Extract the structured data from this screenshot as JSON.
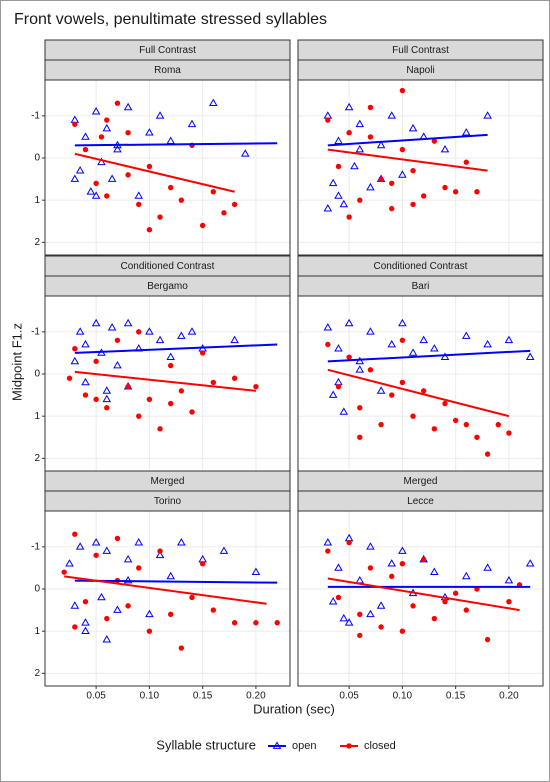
{
  "title": "Front vowels, penultimate stressed syllables",
  "x_label": "Duration (sec)",
  "y_label": "Midpoint F1.z",
  "legend": {
    "title": "Syllable structure",
    "items": [
      {
        "name": "open",
        "color": "#0000ff",
        "marker": "triangle"
      },
      {
        "name": "closed",
        "color": "#ff0000",
        "marker": "circle"
      }
    ]
  },
  "chart_data": [
    {
      "type": "scatter",
      "facet": "Full Contrast",
      "panel": "Roma",
      "grid": true,
      "y_reversed": true,
      "xlim": [
        0.002,
        0.232
      ],
      "xticks": [
        0.05,
        {
          "value": 0.1,
          "label": "0.10"
        },
        0.15,
        {
          "value": 0.2,
          "label": "0.20"
        }
      ],
      "ylim": [
        -1.85,
        2.3
      ],
      "yticks": [
        -1,
        0,
        1,
        2
      ],
      "series": [
        {
          "x": [
            0.03,
            0.035,
            0.04,
            0.045,
            0.05,
            0.055,
            0.06,
            0.065,
            0.07,
            0.08,
            0.09,
            0.1,
            0.11,
            0.12,
            0.14,
            0.16,
            0.19,
            0.03,
            0.05,
            0.07
          ],
          "values": [
            -0.9,
            0.3,
            -0.5,
            0.8,
            -1.1,
            0.1,
            -0.7,
            0.5,
            -0.2,
            -1.2,
            0.9,
            -0.6,
            -1.0,
            -0.4,
            -0.8,
            -1.3,
            -0.1,
            0.5,
            0.9,
            -0.3
          ],
          "fit": {
            "x": [
              0.03,
              0.22
            ],
            "values": [
              -0.3,
              -0.35
            ]
          }
        },
        {
          "x": [
            0.03,
            0.04,
            0.05,
            0.055,
            0.06,
            0.07,
            0.08,
            0.09,
            0.1,
            0.11,
            0.12,
            0.13,
            0.14,
            0.15,
            0.16,
            0.17,
            0.18,
            0.06,
            0.08,
            0.1
          ],
          "values": [
            -0.8,
            -0.2,
            0.6,
            -0.5,
            0.9,
            -1.3,
            0.4,
            1.1,
            0.2,
            1.4,
            0.7,
            1.0,
            -0.3,
            1.6,
            0.8,
            1.3,
            1.1,
            -0.9,
            -0.6,
            1.7
          ],
          "fit": {
            "x": [
              0.03,
              0.18
            ],
            "values": [
              -0.1,
              0.8
            ]
          }
        }
      ]
    },
    {
      "type": "scatter",
      "facet": "Full Contrast",
      "panel": "Napoli",
      "grid": true,
      "y_reversed": true,
      "xlim": [
        0.002,
        0.232
      ],
      "xticks": [
        0.05,
        {
          "value": 0.1,
          "label": "0.10"
        },
        0.15,
        {
          "value": 0.2,
          "label": "0.20"
        }
      ],
      "ylim": [
        -1.85,
        2.3
      ],
      "yticks": [
        -1,
        0,
        1,
        2
      ],
      "series": [
        {
          "x": [
            0.03,
            0.035,
            0.04,
            0.045,
            0.05,
            0.055,
            0.06,
            0.07,
            0.08,
            0.09,
            0.1,
            0.11,
            0.12,
            0.14,
            0.16,
            0.18,
            0.04,
            0.06,
            0.08,
            0.03
          ],
          "values": [
            -1.0,
            0.6,
            -0.4,
            1.1,
            -1.2,
            0.2,
            -0.8,
            0.7,
            -0.3,
            -1.0,
            0.4,
            -0.7,
            -0.5,
            -0.2,
            -0.6,
            -1.0,
            0.9,
            -0.2,
            0.5,
            1.2
          ],
          "fit": {
            "x": [
              0.03,
              0.18
            ],
            "values": [
              -0.3,
              -0.55
            ]
          }
        },
        {
          "x": [
            0.03,
            0.04,
            0.05,
            0.06,
            0.07,
            0.08,
            0.09,
            0.1,
            0.11,
            0.12,
            0.13,
            0.14,
            0.15,
            0.16,
            0.17,
            0.05,
            0.07,
            0.09,
            0.11,
            0.1
          ],
          "values": [
            -0.9,
            0.2,
            -0.6,
            1.0,
            -1.2,
            0.5,
            1.2,
            -1.6,
            0.3,
            0.9,
            -0.4,
            0.7,
            0.8,
            0.1,
            0.8,
            1.4,
            -0.5,
            0.6,
            1.1,
            -0.2
          ],
          "fit": {
            "x": [
              0.03,
              0.18
            ],
            "values": [
              -0.2,
              0.3
            ]
          }
        }
      ]
    },
    {
      "type": "scatter",
      "facet": "Conditioned Contrast",
      "panel": "Bergamo",
      "grid": true,
      "y_reversed": true,
      "xlim": [
        0.002,
        0.232
      ],
      "xticks": [
        0.05,
        {
          "value": 0.1,
          "label": "0.10"
        },
        0.15,
        {
          "value": 0.2,
          "label": "0.20"
        }
      ],
      "ylim": [
        -1.85,
        2.3
      ],
      "yticks": [
        -1,
        0,
        1,
        2
      ],
      "series": [
        {
          "x": [
            0.03,
            0.035,
            0.04,
            0.05,
            0.055,
            0.06,
            0.065,
            0.07,
            0.08,
            0.09,
            0.1,
            0.11,
            0.12,
            0.13,
            0.14,
            0.15,
            0.04,
            0.06,
            0.08,
            0.18
          ],
          "values": [
            -0.3,
            -1.0,
            0.2,
            -1.2,
            -0.5,
            0.4,
            -1.1,
            -0.2,
            -1.2,
            -0.6,
            -1.0,
            -0.8,
            -0.4,
            -0.9,
            -1.0,
            -0.6,
            -0.7,
            0.6,
            0.3,
            -0.8
          ],
          "fit": {
            "x": [
              0.03,
              0.22
            ],
            "values": [
              -0.5,
              -0.7
            ]
          }
        },
        {
          "x": [
            0.025,
            0.03,
            0.04,
            0.05,
            0.06,
            0.07,
            0.08,
            0.09,
            0.1,
            0.11,
            0.12,
            0.13,
            0.14,
            0.15,
            0.16,
            0.18,
            0.2,
            0.05,
            0.09,
            0.12
          ],
          "values": [
            0.1,
            -0.6,
            0.5,
            -0.3,
            0.8,
            -0.8,
            0.3,
            1.0,
            0.6,
            1.3,
            -0.2,
            0.4,
            0.9,
            -0.5,
            0.2,
            0.1,
            0.3,
            0.6,
            -1.0,
            0.7
          ],
          "fit": {
            "x": [
              0.03,
              0.2
            ],
            "values": [
              -0.05,
              0.4
            ]
          }
        }
      ]
    },
    {
      "type": "scatter",
      "facet": "Conditioned Contrast",
      "panel": "Bari",
      "grid": true,
      "y_reversed": true,
      "xlim": [
        0.002,
        0.232
      ],
      "xticks": [
        0.05,
        {
          "value": 0.1,
          "label": "0.10"
        },
        0.15,
        {
          "value": 0.2,
          "label": "0.20"
        }
      ],
      "ylim": [
        -1.85,
        2.3
      ],
      "yticks": [
        -1,
        0,
        1,
        2
      ],
      "series": [
        {
          "x": [
            0.03,
            0.035,
            0.04,
            0.045,
            0.05,
            0.06,
            0.07,
            0.08,
            0.09,
            0.1,
            0.11,
            0.12,
            0.13,
            0.14,
            0.16,
            0.18,
            0.2,
            0.22,
            0.04,
            0.06
          ],
          "values": [
            -1.1,
            0.5,
            -0.6,
            0.9,
            -1.2,
            -0.3,
            -1.0,
            0.4,
            -0.7,
            -1.2,
            -0.5,
            -0.8,
            -0.6,
            -0.4,
            -0.9,
            -0.7,
            -0.8,
            -0.4,
            0.2,
            -0.1
          ],
          "fit": {
            "x": [
              0.03,
              0.22
            ],
            "values": [
              -0.3,
              -0.55
            ]
          }
        },
        {
          "x": [
            0.03,
            0.04,
            0.05,
            0.06,
            0.07,
            0.08,
            0.09,
            0.1,
            0.11,
            0.12,
            0.13,
            0.14,
            0.15,
            0.16,
            0.17,
            0.18,
            0.19,
            0.2,
            0.06,
            0.1
          ],
          "values": [
            -0.7,
            0.3,
            -0.4,
            0.8,
            -0.1,
            1.2,
            0.5,
            -0.8,
            1.0,
            0.4,
            1.3,
            0.7,
            1.1,
            1.2,
            1.5,
            1.9,
            1.2,
            1.4,
            1.5,
            0.2
          ],
          "fit": {
            "x": [
              0.03,
              0.2
            ],
            "values": [
              -0.1,
              1.0
            ]
          }
        }
      ]
    },
    {
      "type": "scatter",
      "facet": "Merged",
      "panel": "Torino",
      "grid": true,
      "y_reversed": true,
      "xlim": [
        0.002,
        0.232
      ],
      "xticks": [
        0.05,
        {
          "value": 0.1,
          "label": "0.10"
        },
        0.15,
        {
          "value": 0.2,
          "label": "0.20"
        }
      ],
      "ylim": [
        -1.85,
        2.3
      ],
      "yticks": [
        -1,
        0,
        1,
        2
      ],
      "series": [
        {
          "x": [
            0.025,
            0.03,
            0.035,
            0.04,
            0.05,
            0.055,
            0.06,
            0.07,
            0.08,
            0.09,
            0.1,
            0.11,
            0.12,
            0.13,
            0.15,
            0.17,
            0.2,
            0.04,
            0.06,
            0.08
          ],
          "values": [
            -0.6,
            0.4,
            -1.0,
            0.8,
            -1.1,
            0.2,
            -0.9,
            0.5,
            -0.7,
            -1.1,
            0.6,
            -0.8,
            -0.3,
            -1.1,
            -0.7,
            -0.9,
            -0.4,
            1.0,
            1.2,
            -0.2
          ],
          "fit": {
            "x": [
              0.03,
              0.22
            ],
            "values": [
              -0.2,
              -0.15
            ]
          }
        },
        {
          "x": [
            0.02,
            0.03,
            0.04,
            0.05,
            0.06,
            0.07,
            0.08,
            0.09,
            0.1,
            0.11,
            0.12,
            0.13,
            0.14,
            0.15,
            0.16,
            0.18,
            0.2,
            0.22,
            0.03,
            0.07
          ],
          "values": [
            -0.4,
            -1.3,
            0.3,
            -0.8,
            0.7,
            -1.2,
            0.4,
            -0.5,
            1.0,
            -0.9,
            0.6,
            1.4,
            0.2,
            -0.6,
            0.5,
            0.8,
            0.8,
            0.8,
            0.9,
            -0.2
          ],
          "fit": {
            "x": [
              0.02,
              0.21
            ],
            "values": [
              -0.3,
              0.35
            ]
          }
        }
      ]
    },
    {
      "type": "scatter",
      "facet": "Merged",
      "panel": "Lecce",
      "grid": true,
      "y_reversed": true,
      "xlim": [
        0.002,
        0.232
      ],
      "xticks": [
        0.05,
        {
          "value": 0.1,
          "label": "0.10"
        },
        0.15,
        {
          "value": 0.2,
          "label": "0.20"
        }
      ],
      "ylim": [
        -1.85,
        2.3
      ],
      "yticks": [
        -1,
        0,
        1,
        2
      ],
      "series": [
        {
          "x": [
            0.03,
            0.035,
            0.04,
            0.045,
            0.05,
            0.06,
            0.07,
            0.08,
            0.09,
            0.1,
            0.11,
            0.12,
            0.13,
            0.14,
            0.16,
            0.18,
            0.2,
            0.22,
            0.05,
            0.07
          ],
          "values": [
            -1.1,
            0.3,
            -0.5,
            0.7,
            -1.2,
            -0.2,
            -1.0,
            0.4,
            -0.6,
            -0.9,
            0.1,
            -0.7,
            -0.4,
            0.2,
            -0.3,
            -0.5,
            -0.2,
            -0.6,
            0.8,
            0.6
          ],
          "fit": {
            "x": [
              0.03,
              0.22
            ],
            "values": [
              -0.05,
              -0.05
            ]
          }
        },
        {
          "x": [
            0.03,
            0.04,
            0.05,
            0.06,
            0.07,
            0.08,
            0.09,
            0.1,
            0.11,
            0.12,
            0.13,
            0.14,
            0.15,
            0.16,
            0.17,
            0.18,
            0.2,
            0.21,
            0.06,
            0.1
          ],
          "values": [
            -0.9,
            0.2,
            -1.1,
            0.6,
            -0.5,
            0.9,
            -0.3,
            1.0,
            0.4,
            -0.7,
            0.7,
            0.3,
            0.1,
            0.5,
            0.0,
            1.2,
            0.3,
            -0.1,
            1.1,
            -0.6
          ],
          "fit": {
            "x": [
              0.03,
              0.21
            ],
            "values": [
              -0.25,
              0.5
            ]
          }
        }
      ]
    }
  ]
}
